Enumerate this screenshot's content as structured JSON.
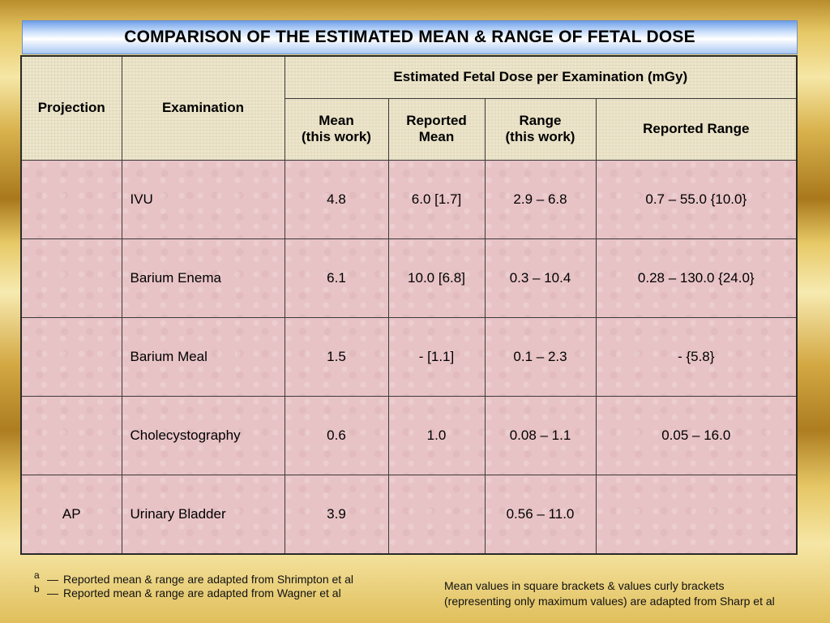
{
  "title": "COMPARISON OF THE ESTIMATED MEAN & RANGE OF FETAL DOSE",
  "table": {
    "col_projection": "Projection",
    "col_examination": "Examination",
    "group_header": "Estimated Fetal Dose per Examination (mGy)",
    "col_mean_line1": "Mean",
    "col_mean_line2": "(this work)",
    "col_reported_mean_line1": "Reported",
    "col_reported_mean_line2": "Mean",
    "col_range_line1": "Range",
    "col_range_line2": "(this work)",
    "col_reported_range": "Reported Range",
    "rows": [
      {
        "projection": "",
        "examination": "IVU",
        "mean": "4.8",
        "reported_mean": "6.0 [1.7]",
        "range": "2.9 – 6.8",
        "reported_range": "0.7 – 55.0 {10.0}"
      },
      {
        "projection": "",
        "examination": "Barium Enema",
        "mean": "6.1",
        "reported_mean": "10.0 [6.8]",
        "range": "0.3 – 10.4",
        "reported_range": "0.28 – 130.0 {24.0}"
      },
      {
        "projection": "",
        "examination": "Barium Meal",
        "mean": "1.5",
        "reported_mean": "- [1.1]",
        "range": "0.1 – 2.3",
        "reported_range": "- {5.8}"
      },
      {
        "projection": "",
        "examination": "Cholecystography",
        "mean": "0.6",
        "reported_mean": "1.0",
        "range": "0.08 – 1.1",
        "reported_range": "0.05 – 16.0"
      },
      {
        "projection": "AP",
        "examination": "Urinary Bladder",
        "mean": "3.9",
        "reported_mean": "",
        "range": "0.56 – 11.0",
        "reported_range": ""
      }
    ]
  },
  "footnotes": [
    {
      "letter": "a",
      "dash": "—",
      "text": "Reported mean & range are adapted from Shrimpton et al"
    },
    {
      "letter": "b",
      "dash": "—",
      "text": "Reported mean & range are adapted from Wagner et al"
    }
  ],
  "sharp_note": {
    "line1": "Mean values in square brackets & values curly brackets",
    "line2": "(representing only maximum values) are adapted from Sharp et al"
  }
}
